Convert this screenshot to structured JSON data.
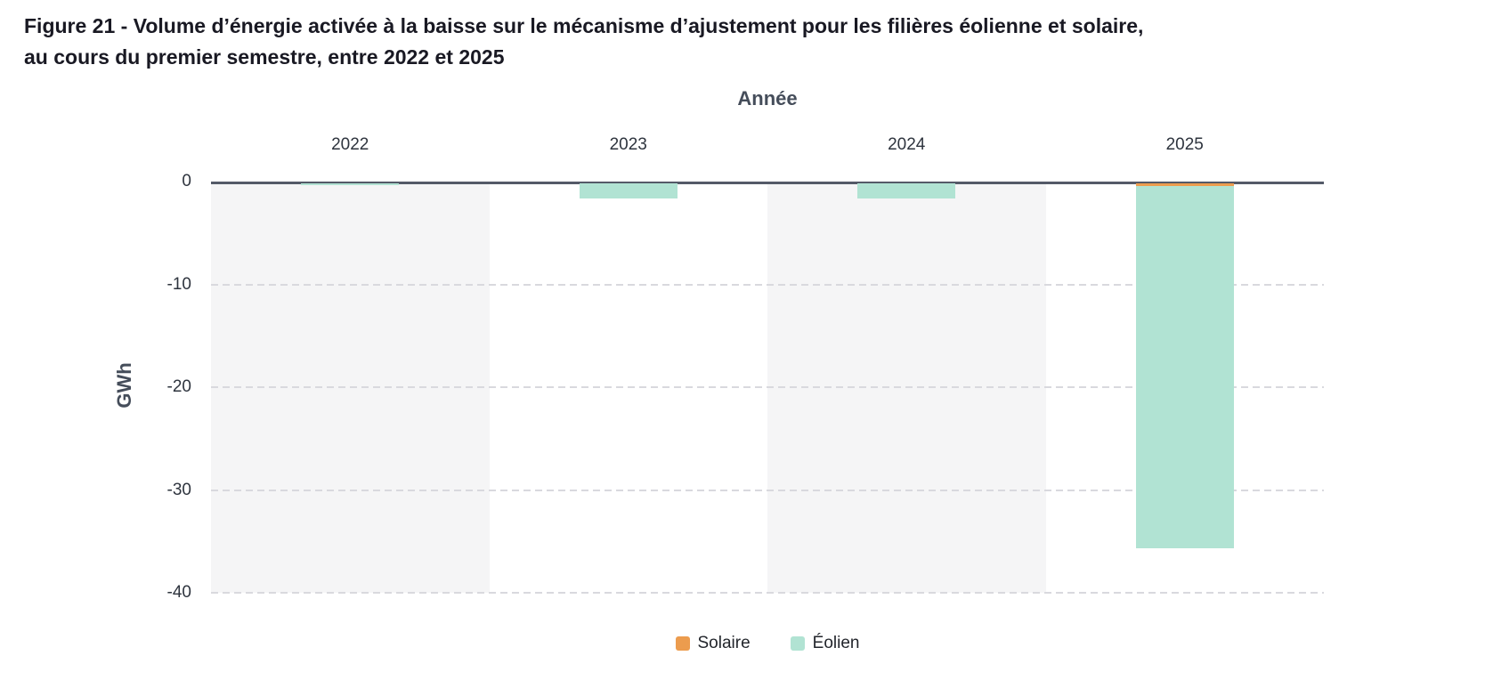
{
  "figure_title": {
    "line1": "Figure 21 - Volume d’énergie activée à la baisse sur le mécanisme d’ajustement pour les filières éolienne et solaire,",
    "line2": "au cours du premier semestre, entre 2022 et 2025"
  },
  "chart_data": {
    "type": "bar",
    "stacked": true,
    "orientation": "vertical",
    "title": "Figure 21 - Volume d’énergie activée à la baisse sur le mécanisme d’ajustement pour les filières éolienne et solaire, au cours du premier semestre, entre 2022 et 2025",
    "xlabel": "Année",
    "ylabel": "GWh",
    "unit": "GWh",
    "categories": [
      "2022",
      "2023",
      "2024",
      "2025"
    ],
    "series": [
      {
        "name": "Solaire",
        "color": "#ec9c4e",
        "values": [
          0,
          0,
          0,
          -0.3
        ]
      },
      {
        "name": "Éolien",
        "color": "#b1e3d3",
        "values": [
          -0.15,
          -1.5,
          -1.5,
          -35.2
        ]
      }
    ],
    "ylim": [
      -40,
      0
    ],
    "yticks": [
      0,
      -10,
      -20,
      -30,
      -40
    ],
    "grid": "horizontal-dashed",
    "legend_position": "bottom",
    "legend": [
      "Solaire",
      "Éolien"
    ],
    "styles": {
      "band_fill": "#f5f5f6",
      "axis_line_color": "#545a68",
      "gridline_color": "#d9d9de",
      "title_color": "#191923",
      "axis_title_color": "#454d5a",
      "tick_color": "#2e343e",
      "legend_text_color": "#22252b",
      "background": "#ffffff"
    }
  }
}
